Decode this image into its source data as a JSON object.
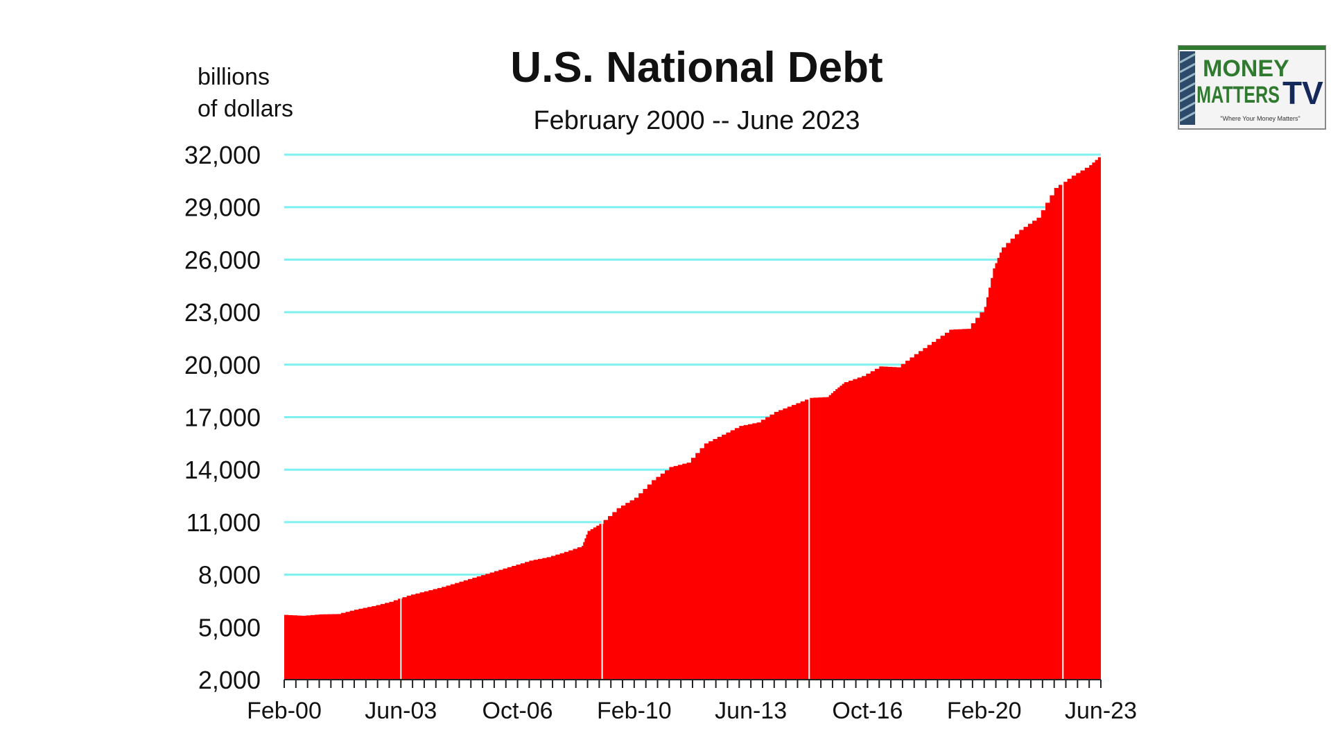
{
  "chart_data": {
    "type": "area",
    "title": "U.S. National Debt",
    "subtitle": "February 2000 -- June 2023",
    "ylabel_line1": "billions",
    "ylabel_line2": "of dollars",
    "xlabel": "",
    "ylim": [
      2000,
      32000
    ],
    "y_ticks": [
      32000,
      29000,
      26000,
      23000,
      20000,
      17000,
      14000,
      11000,
      8000,
      5000,
      2000
    ],
    "y_tick_labels": [
      "32,000",
      "29,000",
      "26,000",
      "23,000",
      "20,000",
      "17,000",
      "14,000",
      "11,000",
      "8,000",
      "5,000",
      "2,000"
    ],
    "x_ticks": [
      {
        "label": "Feb-00",
        "date": "2000-02"
      },
      {
        "label": "Jun-03",
        "date": "2003-06"
      },
      {
        "label": "Oct-06",
        "date": "2006-10"
      },
      {
        "label": "Feb-10",
        "date": "2010-02"
      },
      {
        "label": "Jun-13",
        "date": "2013-06"
      },
      {
        "label": "Oct-16",
        "date": "2016-10"
      },
      {
        "label": "Feb-20",
        "date": "2020-02"
      },
      {
        "label": "Jun-23",
        "date": "2023-06"
      }
    ],
    "grid": true,
    "fill_color": "#ff0000",
    "grid_color": "#7ff0f0",
    "series": [
      {
        "x": [
          "2000-02",
          "2000-08",
          "2001-02",
          "2001-08",
          "2002-02",
          "2002-08",
          "2003-02",
          "2003-08",
          "2004-02",
          "2004-08",
          "2005-02",
          "2005-08",
          "2006-02",
          "2006-08",
          "2007-02",
          "2007-08",
          "2008-02",
          "2008-08",
          "2008-10",
          "2009-02",
          "2009-08",
          "2010-02",
          "2010-08",
          "2011-02",
          "2011-08",
          "2012-02",
          "2012-08",
          "2013-02",
          "2013-08",
          "2014-02",
          "2014-08",
          "2015-02",
          "2015-08",
          "2015-11",
          "2016-02",
          "2016-08",
          "2017-02",
          "2017-08",
          "2018-02",
          "2018-08",
          "2019-02",
          "2019-08",
          "2020-02",
          "2020-05",
          "2020-08",
          "2021-02",
          "2021-08",
          "2022-02",
          "2022-08",
          "2023-02",
          "2023-06"
        ],
        "values": [
          5700,
          5650,
          5730,
          5750,
          6000,
          6200,
          6450,
          6800,
          7050,
          7300,
          7600,
          7900,
          8200,
          8500,
          8800,
          9000,
          9300,
          9650,
          10500,
          10900,
          11800,
          12400,
          13400,
          14150,
          14400,
          15500,
          16000,
          16500,
          16700,
          17300,
          17700,
          18100,
          18150,
          18600,
          19000,
          19350,
          19900,
          19850,
          20600,
          21300,
          22000,
          22050,
          23300,
          25500,
          26700,
          27700,
          28400,
          30100,
          30800,
          31400,
          32000
        ]
      }
    ]
  },
  "logo": {
    "line1": "MONEY",
    "line2": "MATTERS",
    "line3": "TV",
    "tagline": "\"Where Your Money Matters\"",
    "green": "#2f7a2f",
    "navy": "#15285a"
  }
}
